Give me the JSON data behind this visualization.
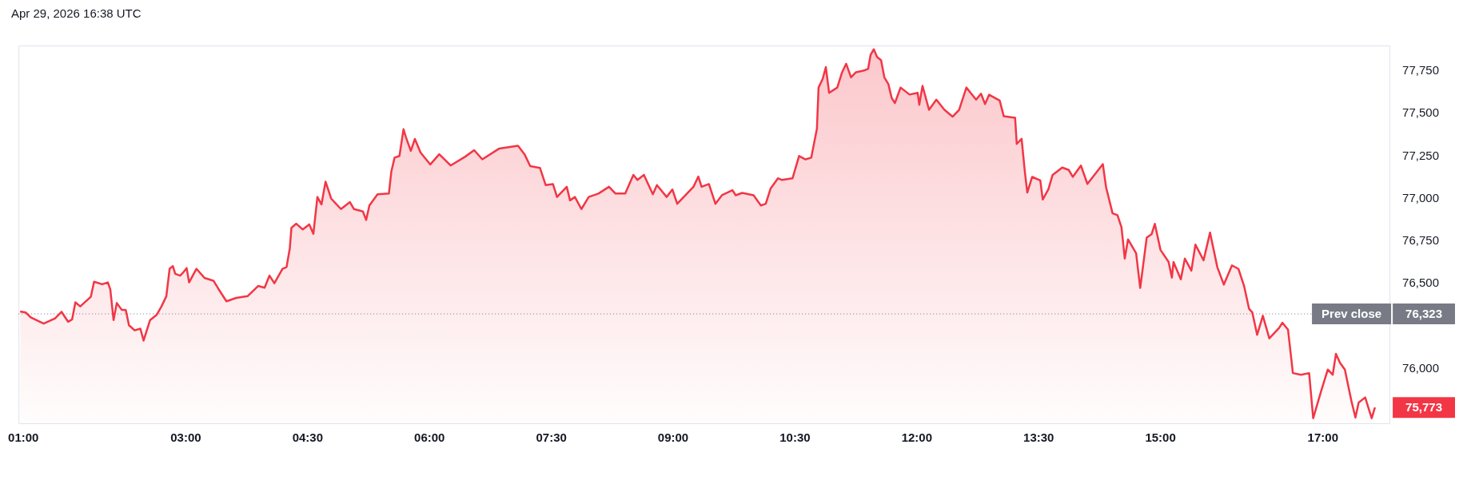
{
  "chart_data": {
    "type": "area",
    "annotations": [
      "Apr 29, 2026 16:38 UTC",
      "76,323",
      "75,773"
    ],
    "legend": false,
    "xlim": [
      0.94,
      17.82
    ],
    "ylim": [
      75680,
      77900
    ],
    "xticks": [
      {
        "value": 1,
        "label": "01:00"
      },
      {
        "value": 3,
        "label": "03:00"
      },
      {
        "value": 4.5,
        "label": "04:30"
      },
      {
        "value": 6,
        "label": "06:00"
      },
      {
        "value": 7.5,
        "label": "07:30"
      },
      {
        "value": 9,
        "label": "09:00"
      },
      {
        "value": 10.5,
        "label": "10:30"
      },
      {
        "value": 12,
        "label": "12:00"
      },
      {
        "value": 13.5,
        "label": "13:30"
      },
      {
        "value": 15,
        "label": "15:00"
      },
      {
        "value": 17,
        "label": "17:00"
      }
    ],
    "yticks": [
      {
        "value": 76000,
        "label": "76,000"
      },
      {
        "value": 76500,
        "label": "76,500"
      },
      {
        "value": 76750,
        "label": "76,750"
      },
      {
        "value": 77000,
        "label": "77,000"
      },
      {
        "value": 77250,
        "label": "77,250"
      },
      {
        "value": 77500,
        "label": "77,500"
      },
      {
        "value": 77750,
        "label": "77,750"
      }
    ],
    "ref_lines": [
      {
        "axis": "y",
        "value": 76323,
        "label": "Prev close",
        "color": "#787b86",
        "line_style": "dotted"
      }
    ],
    "series": [
      {
        "color": "#f23645",
        "x": [
          0.96,
          1.03,
          1.09,
          1.25,
          1.39,
          1.47,
          1.55,
          1.6,
          1.64,
          1.7,
          1.83,
          1.87,
          1.97,
          2.04,
          2.07,
          2.11,
          2.15,
          2.21,
          2.26,
          2.3,
          2.37,
          2.44,
          2.48,
          2.56,
          2.64,
          2.7,
          2.76,
          2.8,
          2.84,
          2.87,
          2.93,
          2.97,
          3.01,
          3.04,
          3.13,
          3.23,
          3.34,
          3.4,
          3.5,
          3.62,
          3.76,
          3.89,
          3.97,
          4.03,
          4.09,
          4.19,
          4.24,
          4.28,
          4.3,
          4.36,
          4.44,
          4.52,
          4.57,
          4.62,
          4.67,
          4.72,
          4.79,
          4.91,
          5.02,
          5.07,
          5.18,
          5.22,
          5.26,
          5.36,
          5.5,
          5.53,
          5.57,
          5.63,
          5.68,
          5.71,
          5.77,
          5.82,
          5.89,
          6.01,
          6.12,
          6.26,
          6.44,
          6.55,
          6.65,
          6.86,
          7.09,
          7.17,
          7.24,
          7.36,
          7.43,
          7.52,
          7.57,
          7.69,
          7.73,
          7.79,
          7.87,
          7.96,
          8.08,
          8.21,
          8.29,
          8.41,
          8.51,
          8.56,
          8.64,
          8.75,
          8.8,
          8.92,
          8.99,
          9.05,
          9.17,
          9.25,
          9.31,
          9.35,
          9.44,
          9.52,
          9.6,
          9.73,
          9.77,
          9.85,
          9.99,
          10.08,
          10.14,
          10.2,
          10.29,
          10.34,
          10.47,
          10.55,
          10.63,
          10.7,
          10.77,
          10.79,
          10.84,
          10.88,
          10.92,
          11.02,
          11.08,
          11.13,
          11.19,
          11.25,
          11.35,
          11.4,
          11.43,
          11.47,
          11.51,
          11.56,
          11.6,
          11.65,
          11.69,
          11.73,
          11.8,
          11.91,
          12.01,
          12.03,
          12.07,
          12.15,
          12.24,
          12.34,
          12.44,
          12.52,
          12.61,
          12.67,
          12.73,
          12.79,
          12.84,
          12.89,
          13.02,
          13.07,
          13.21,
          13.23,
          13.29,
          13.33,
          13.36,
          13.42,
          13.52,
          13.55,
          13.62,
          13.67,
          13.79,
          13.87,
          13.92,
          14.02,
          14.1,
          14.2,
          14.29,
          14.33,
          14.41,
          14.47,
          14.52,
          14.56,
          14.6,
          14.7,
          14.75,
          14.83,
          14.89,
          14.93,
          15.0,
          15.1,
          15.14,
          15.16,
          15.25,
          15.3,
          15.38,
          15.43,
          15.53,
          15.61,
          15.7,
          15.78,
          15.88,
          15.96,
          16.03,
          16.09,
          16.13,
          16.19,
          16.26,
          16.34,
          16.46,
          16.5,
          16.57,
          16.63,
          16.73,
          16.83,
          16.88,
          16.98,
          17.06,
          17.12,
          17.16,
          17.21,
          17.27,
          17.35,
          17.4,
          17.44,
          17.52,
          17.6,
          17.64
        ],
        "values": [
          76337,
          76331,
          76303,
          76266,
          76297,
          76335,
          76277,
          76291,
          76391,
          76367,
          76423,
          76512,
          76497,
          76508,
          76467,
          76287,
          76387,
          76347,
          76347,
          76256,
          76226,
          76236,
          76166,
          76287,
          76317,
          76367,
          76427,
          76588,
          76604,
          76558,
          76548,
          76568,
          76592,
          76508,
          76588,
          76534,
          76518,
          76471,
          76397,
          76417,
          76427,
          76487,
          76477,
          76548,
          76503,
          76588,
          76598,
          76708,
          76829,
          76853,
          76819,
          76849,
          76793,
          77010,
          76966,
          77100,
          77000,
          76939,
          76980,
          76939,
          76925,
          76875,
          76960,
          77026,
          77030,
          77160,
          77241,
          77251,
          77408,
          77361,
          77281,
          77351,
          77271,
          77201,
          77261,
          77195,
          77247,
          77285,
          77231,
          77295,
          77311,
          77261,
          77191,
          77181,
          77080,
          77086,
          77010,
          77070,
          76990,
          77010,
          76939,
          77010,
          77030,
          77070,
          77030,
          77030,
          77140,
          77110,
          77140,
          77026,
          77080,
          77010,
          77054,
          76970,
          77030,
          77070,
          77130,
          77070,
          77086,
          76970,
          77020,
          77050,
          77020,
          77034,
          77020,
          76960,
          76970,
          77060,
          77120,
          77110,
          77120,
          77251,
          77231,
          77241,
          77412,
          77653,
          77703,
          77773,
          77622,
          77653,
          77743,
          77793,
          77713,
          77743,
          77753,
          77763,
          77844,
          77878,
          77833,
          77813,
          77713,
          77673,
          77592,
          77562,
          77653,
          77612,
          77622,
          77552,
          77663,
          77522,
          77582,
          77522,
          77482,
          77522,
          77653,
          77617,
          77582,
          77617,
          77556,
          77611,
          77577,
          77485,
          77475,
          77322,
          77352,
          77158,
          77036,
          77128,
          77107,
          76995,
          77056,
          77138,
          77183,
          77169,
          77128,
          77195,
          77087,
          77148,
          77203,
          77067,
          76914,
          76903,
          76832,
          76648,
          76761,
          76679,
          76475,
          76771,
          76791,
          76852,
          76699,
          76628,
          76536,
          76628,
          76526,
          76648,
          76577,
          76730,
          76638,
          76801,
          76597,
          76495,
          76608,
          76587,
          76485,
          76353,
          76332,
          76200,
          76312,
          76179,
          76240,
          76271,
          76230,
          75975,
          75965,
          75975,
          75710,
          75873,
          75996,
          75965,
          76088,
          76036,
          75996,
          75812,
          75714,
          75802,
          75832,
          75710,
          75773
        ]
      }
    ]
  }
}
